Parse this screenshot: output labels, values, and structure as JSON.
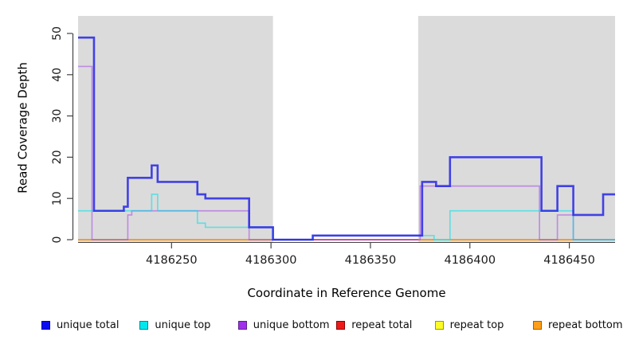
{
  "figure": {
    "background": "#FFFFFF",
    "plot_shading_color": "#DBDBDB",
    "axis_color": "#444444",
    "tick_label_color": "#1a1a1a"
  },
  "chart_data": {
    "type": "line",
    "subtype": "step",
    "title": "",
    "xlabel": "Coordinate in Reference Genome",
    "ylabel": "Read Coverage Depth",
    "xlim": [
      4186203,
      4186473
    ],
    "ylim": [
      0,
      54
    ],
    "xticks": [
      4186250,
      4186300,
      4186350,
      4186400,
      4186450
    ],
    "yticks": [
      0,
      10,
      20,
      30,
      40,
      50
    ],
    "grid": false,
    "legend_position": "bottom",
    "shaded_regions": [
      {
        "from": 4186203,
        "to": 4186301,
        "color": "#DBDBDB"
      },
      {
        "from": 4186374,
        "to": 4186473,
        "color": "#DBDBDB"
      }
    ],
    "series": [
      {
        "name": "unique total",
        "color": "#2626E6",
        "opacity": 0.85,
        "width": 2.6,
        "points": [
          [
            4186203,
            49
          ],
          [
            4186211,
            7
          ],
          [
            4186226,
            8
          ],
          [
            4186228,
            15
          ],
          [
            4186240,
            18
          ],
          [
            4186243,
            14
          ],
          [
            4186263,
            11
          ],
          [
            4186267,
            10
          ],
          [
            4186289,
            3
          ],
          [
            4186301,
            0
          ],
          [
            4186321,
            1
          ],
          [
            4186376,
            14
          ],
          [
            4186383,
            13
          ],
          [
            4186390,
            20
          ],
          [
            4186436,
            7
          ],
          [
            4186444,
            13
          ],
          [
            4186452,
            6
          ],
          [
            4186467,
            11
          ],
          [
            4186473,
            11
          ]
        ]
      },
      {
        "name": "unique top",
        "color": "#00E0E8",
        "opacity": 0.55,
        "width": 1.7,
        "points": [
          [
            4186203,
            7
          ],
          [
            4186240,
            11
          ],
          [
            4186243,
            7
          ],
          [
            4186263,
            4
          ],
          [
            4186267,
            3
          ],
          [
            4186301,
            0
          ],
          [
            4186321,
            1
          ],
          [
            4186382,
            0
          ],
          [
            4186390,
            7
          ],
          [
            4186452,
            0
          ],
          [
            4186473,
            0
          ]
        ]
      },
      {
        "name": "unique bottom",
        "color": "#A23FE8",
        "opacity": 0.5,
        "width": 1.7,
        "points": [
          [
            4186203,
            42
          ],
          [
            4186210,
            0
          ],
          [
            4186228,
            6
          ],
          [
            4186230,
            7
          ],
          [
            4186289,
            0
          ],
          [
            4186375,
            13
          ],
          [
            4186435,
            0
          ],
          [
            4186444,
            6
          ],
          [
            4186452,
            0
          ],
          [
            4186473,
            0
          ]
        ]
      },
      {
        "name": "repeat total",
        "color": "#DD2222",
        "opacity": 0.75,
        "width": 1.7,
        "points": [
          [
            4186203,
            0
          ],
          [
            4186473,
            0
          ]
        ]
      },
      {
        "name": "repeat top",
        "color": "#F2F200",
        "opacity": 0.9,
        "width": 1.7,
        "points": [
          [
            4186203,
            0
          ],
          [
            4186473,
            0
          ]
        ]
      },
      {
        "name": "repeat bottom",
        "color": "#FF9D1F",
        "opacity": 1,
        "width": 2,
        "points": [
          [
            4186203,
            0
          ],
          [
            4186473,
            0
          ]
        ]
      }
    ],
    "bottom_overlay_segments": [
      {
        "from": 4186301,
        "to": 4186374,
        "color": "#E25C78"
      },
      {
        "from": 4186382,
        "to": 4186390,
        "color": "#9CD69C"
      },
      {
        "from": 4186452,
        "to": 4186473,
        "color": "#9CD69C"
      }
    ],
    "legend": {
      "entries": [
        {
          "label": "unique total",
          "fill": "#0B0BF2",
          "border": "#0000A8"
        },
        {
          "label": "unique top",
          "fill": "#00E8EE",
          "border": "#00888E"
        },
        {
          "label": "unique bottom",
          "fill": "#A02FEA",
          "border": "#5E1E90"
        },
        {
          "label": "repeat total",
          "fill": "#EE1A1A",
          "border": "#8E0000"
        },
        {
          "label": "repeat top",
          "fill": "#FBFB25",
          "border": "#99990A"
        },
        {
          "label": "repeat bottom",
          "fill": "#FE9E19",
          "border": "#A66000"
        }
      ]
    }
  }
}
